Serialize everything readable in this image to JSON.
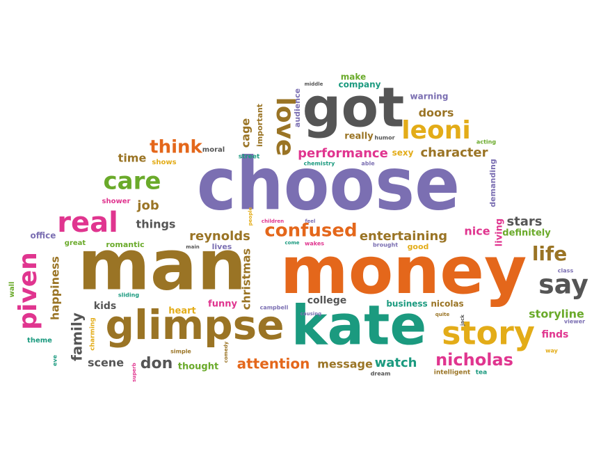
{
  "colors": {
    "purple": "#7b6fb2",
    "orange": "#e4671b",
    "brown": "#9a7425",
    "teal": "#1b9a7f",
    "gold": "#e3ac18",
    "gray": "#555555",
    "pink": "#e0358f",
    "green": "#6aaa2a"
  },
  "words": [
    {
      "text": "choose",
      "color": "purple"
    },
    {
      "text": "money",
      "color": "orange"
    },
    {
      "text": "man",
      "color": "brown"
    },
    {
      "text": "got",
      "color": "gray"
    },
    {
      "text": "kate",
      "color": "teal"
    },
    {
      "text": "glimpse",
      "color": "brown"
    },
    {
      "text": "story",
      "color": "gold"
    },
    {
      "text": "piven",
      "color": "pink"
    },
    {
      "text": "love",
      "color": "brown"
    },
    {
      "text": "leoni",
      "color": "gold"
    },
    {
      "text": "real",
      "color": "pink"
    },
    {
      "text": "care",
      "color": "green"
    },
    {
      "text": "say",
      "color": "gray"
    },
    {
      "text": "confused",
      "color": "orange"
    },
    {
      "text": "think",
      "color": "orange"
    },
    {
      "text": "life",
      "color": "brown"
    },
    {
      "text": "nicholas",
      "color": "pink"
    },
    {
      "text": "performance",
      "color": "pink"
    },
    {
      "text": "character",
      "color": "brown"
    },
    {
      "text": "family",
      "color": "gray"
    },
    {
      "text": "happiness",
      "color": "brown"
    },
    {
      "text": "attention",
      "color": "orange"
    },
    {
      "text": "christmas",
      "color": "brown"
    },
    {
      "text": "reynolds",
      "color": "brown"
    },
    {
      "text": "entertaining",
      "color": "brown"
    },
    {
      "text": "storyline",
      "color": "green"
    },
    {
      "text": "don",
      "color": "gray"
    },
    {
      "text": "scene",
      "color": "gray"
    },
    {
      "text": "message",
      "color": "brown"
    },
    {
      "text": "watch",
      "color": "teal"
    },
    {
      "text": "things",
      "color": "gray"
    },
    {
      "text": "job",
      "color": "brown"
    },
    {
      "text": "doors",
      "color": "brown"
    },
    {
      "text": "stars",
      "color": "gray"
    },
    {
      "text": "cage",
      "color": "brown"
    },
    {
      "text": "time",
      "color": "brown"
    },
    {
      "text": "kids",
      "color": "gray"
    },
    {
      "text": "really",
      "color": "brown"
    },
    {
      "text": "nice",
      "color": "pink"
    },
    {
      "text": "definitely",
      "color": "green"
    },
    {
      "text": "college",
      "color": "gray"
    },
    {
      "text": "business",
      "color": "teal"
    },
    {
      "text": "nicolas",
      "color": "brown"
    },
    {
      "text": "finds",
      "color": "pink"
    },
    {
      "text": "thought",
      "color": "green"
    },
    {
      "text": "funny",
      "color": "pink"
    },
    {
      "text": "heart",
      "color": "gold"
    },
    {
      "text": "living",
      "color": "pink"
    },
    {
      "text": "make",
      "color": "green"
    },
    {
      "text": "company",
      "color": "teal"
    },
    {
      "text": "warning",
      "color": "purple"
    },
    {
      "text": "audience",
      "color": "purple"
    },
    {
      "text": "important",
      "color": "brown"
    },
    {
      "text": "demanding",
      "color": "purple"
    },
    {
      "text": "shows",
      "color": "gold"
    },
    {
      "text": "moral",
      "color": "gray"
    },
    {
      "text": "street",
      "color": "teal"
    },
    {
      "text": "chemistry",
      "color": "teal"
    },
    {
      "text": "able",
      "color": "purple"
    },
    {
      "text": "sexy",
      "color": "gold"
    },
    {
      "text": "humor",
      "color": "gray"
    },
    {
      "text": "acting",
      "color": "green"
    },
    {
      "text": "office",
      "color": "purple"
    },
    {
      "text": "great",
      "color": "green"
    },
    {
      "text": "romantic",
      "color": "green"
    },
    {
      "text": "shower",
      "color": "pink"
    },
    {
      "text": "lives",
      "color": "purple"
    },
    {
      "text": "main",
      "color": "gray"
    },
    {
      "text": "come",
      "color": "teal"
    },
    {
      "text": "wakes",
      "color": "pink"
    },
    {
      "text": "brought",
      "color": "purple"
    },
    {
      "text": "good",
      "color": "gold"
    },
    {
      "text": "wall",
      "color": "green"
    },
    {
      "text": "theme",
      "color": "teal"
    },
    {
      "text": "charming",
      "color": "gold"
    },
    {
      "text": "sliding",
      "color": "teal"
    },
    {
      "text": "simple",
      "color": "brown"
    },
    {
      "text": "superb",
      "color": "pink"
    },
    {
      "text": "comedy",
      "color": "brown"
    },
    {
      "text": "campbell",
      "color": "purple"
    },
    {
      "text": "causing",
      "color": "purple"
    },
    {
      "text": "dream",
      "color": "gray"
    },
    {
      "text": "quite",
      "color": "brown"
    },
    {
      "text": "jack",
      "color": "gray"
    },
    {
      "text": "class",
      "color": "purple"
    },
    {
      "text": "viewer",
      "color": "purple"
    },
    {
      "text": "way",
      "color": "gold"
    },
    {
      "text": "eve",
      "color": "teal"
    },
    {
      "text": "intelligent",
      "color": "brown"
    },
    {
      "text": "tea",
      "color": "teal"
    },
    {
      "text": "children",
      "color": "pink"
    },
    {
      "text": "people",
      "color": "gold"
    },
    {
      "text": "feel",
      "color": "purple"
    },
    {
      "text": "middle",
      "color": "gray"
    }
  ]
}
